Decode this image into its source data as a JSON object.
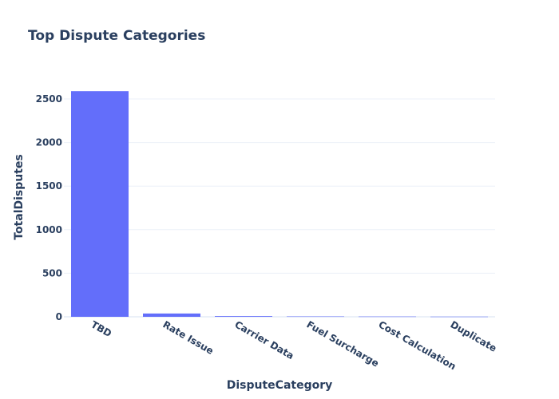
{
  "chart_data": {
    "type": "bar",
    "title": "Top Dispute Categories",
    "xlabel": "DisputeCategory",
    "ylabel": "TotalDisputes",
    "categories": [
      "TBD",
      "Rate Issue",
      "Carrier Data",
      "Fuel Surcharge",
      "Cost Calculation",
      "Duplicate"
    ],
    "values": [
      2590,
      38,
      8,
      4,
      3,
      2
    ],
    "y_ticks": [
      "0",
      "500",
      "1000",
      "1500",
      "2000",
      "2500"
    ],
    "ylim": [
      0,
      2720
    ],
    "grid": true,
    "bar_color": "#636efa",
    "text_color": "#2a3f5f",
    "grid_color": "#ebf0f8"
  }
}
